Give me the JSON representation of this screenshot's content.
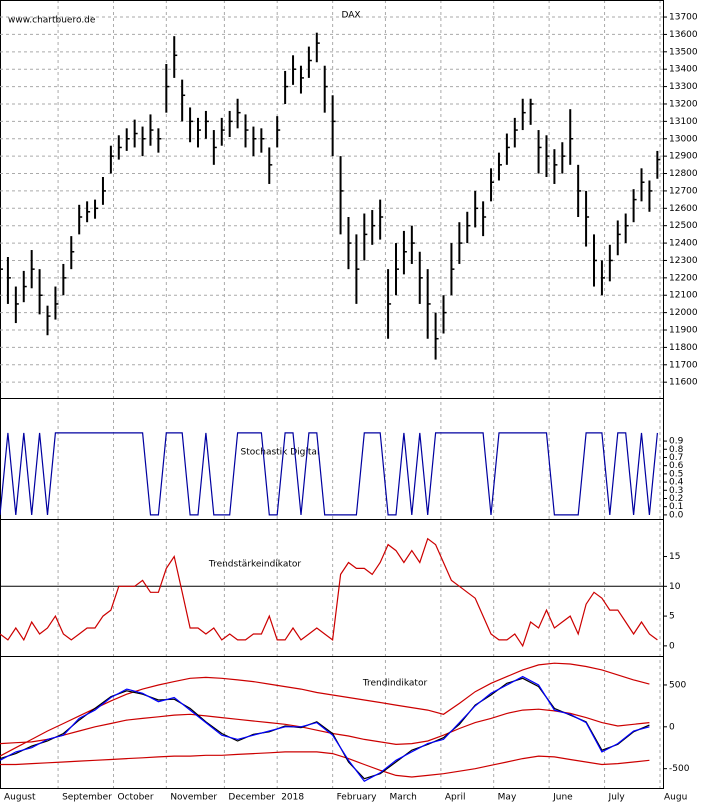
{
  "chart_data": [
    {
      "type": "hlc",
      "title": "DAX",
      "source": "www.chartbuero.de",
      "color": "#000000",
      "grid": true,
      "xlim": [
        0,
        250
      ],
      "x": [
        0,
        3,
        6,
        9,
        12,
        15,
        18,
        21,
        24,
        27,
        30,
        33,
        36,
        39,
        42,
        45,
        48,
        51,
        54,
        57,
        60,
        63,
        66,
        69,
        72,
        75,
        78,
        81,
        84,
        87,
        90,
        93,
        96,
        99,
        102,
        105,
        108,
        111,
        114,
        117,
        120,
        123,
        126,
        129,
        132,
        135,
        138,
        141,
        144,
        147,
        150,
        153,
        156,
        159,
        162,
        165,
        168,
        171,
        174,
        177,
        180,
        183,
        186,
        189,
        192,
        195,
        198,
        201,
        204,
        207,
        210,
        213,
        216,
        219,
        222,
        225,
        228,
        231,
        234,
        237,
        240,
        243,
        246,
        249
      ],
      "high": [
        12330,
        12320,
        12150,
        12240,
        12360,
        12250,
        12040,
        12150,
        12280,
        12440,
        12620,
        12640,
        12650,
        12780,
        12960,
        13020,
        13060,
        13110,
        13070,
        13140,
        13060,
        13430,
        13590,
        13340,
        13180,
        13120,
        13160,
        13050,
        13120,
        13160,
        13230,
        13140,
        13070,
        13060,
        12950,
        13130,
        13390,
        13480,
        13420,
        13530,
        13610,
        13420,
        13250,
        12900,
        12550,
        12450,
        12570,
        12590,
        12650,
        12250,
        12400,
        12470,
        12500,
        12350,
        12250,
        12000,
        12100,
        12400,
        12520,
        12580,
        12700,
        12640,
        12830,
        12920,
        13030,
        13120,
        13230,
        13230,
        13050,
        13020,
        12940,
        12980,
        13170,
        12850,
        12700,
        12450,
        12300,
        12390,
        12530,
        12570,
        12710,
        12830,
        12760,
        12930
      ],
      "low": [
        12150,
        12050,
        11940,
        12060,
        12140,
        11990,
        11870,
        11960,
        12100,
        12250,
        12450,
        12520,
        12540,
        12620,
        12800,
        12880,
        12930,
        12950,
        12900,
        12960,
        12920,
        13150,
        13350,
        13100,
        12980,
        12950,
        13000,
        12850,
        12960,
        13010,
        13060,
        12950,
        12900,
        12920,
        12740,
        12950,
        13200,
        13310,
        13260,
        13350,
        13440,
        13150,
        12900,
        12450,
        12250,
        12050,
        12300,
        12390,
        12420,
        11850,
        12100,
        12220,
        12280,
        12050,
        11850,
        11730,
        11880,
        12100,
        12280,
        12400,
        12490,
        12440,
        12640,
        12760,
        12850,
        12950,
        13050,
        13080,
        12800,
        12780,
        12740,
        12800,
        12850,
        12550,
        12380,
        12150,
        12100,
        12180,
        12330,
        12400,
        12520,
        12640,
        12580,
        12770
      ],
      "close": [
        12250,
        12200,
        12050,
        12150,
        12250,
        12100,
        11980,
        12050,
        12200,
        12350,
        12550,
        12580,
        12600,
        12700,
        12900,
        12950,
        13000,
        13030,
        13000,
        13050,
        13000,
        13300,
        13480,
        13250,
        13100,
        13050,
        13100,
        12950,
        13050,
        13100,
        13150,
        13050,
        13000,
        13000,
        12850,
        13050,
        13300,
        13400,
        13350,
        13450,
        13550,
        13300,
        13100,
        12700,
        12400,
        12250,
        12450,
        12500,
        12550,
        12050,
        12250,
        12350,
        12400,
        12200,
        12050,
        11850,
        12000,
        12250,
        12400,
        12500,
        12600,
        12550,
        12750,
        12850,
        12950,
        13050,
        13150,
        13200,
        12950,
        12900,
        12850,
        12900,
        13000,
        12700,
        12550,
        12300,
        12200,
        12300,
        12450,
        12500,
        12650,
        12750,
        12700,
        12880
      ],
      "ylim": [
        11509,
        13798
      ],
      "yticks": [
        11600,
        11700,
        11800,
        11900,
        12000,
        12100,
        12200,
        12300,
        12400,
        12500,
        12600,
        12700,
        12800,
        12900,
        13000,
        13100,
        13200,
        13300,
        13400,
        13500,
        13600,
        13700
      ]
    },
    {
      "type": "line",
      "title": "Stochastik Digital",
      "title_color": "#0000cc",
      "xlim": [
        0,
        250
      ],
      "x": [
        0,
        3,
        6,
        9,
        12,
        15,
        18,
        21,
        24,
        27,
        30,
        33,
        36,
        39,
        42,
        45,
        48,
        51,
        54,
        57,
        60,
        63,
        66,
        69,
        72,
        75,
        78,
        81,
        84,
        87,
        90,
        93,
        96,
        99,
        102,
        105,
        108,
        111,
        114,
        117,
        120,
        123,
        126,
        129,
        132,
        135,
        138,
        141,
        144,
        147,
        150,
        153,
        156,
        159,
        162,
        165,
        168,
        171,
        174,
        177,
        180,
        183,
        186,
        189,
        192,
        195,
        198,
        201,
        204,
        207,
        210,
        213,
        216,
        219,
        222,
        225,
        228,
        231,
        234,
        237,
        240,
        243,
        246,
        249
      ],
      "series": [
        {
          "color": "#0000a0",
          "values": [
            0,
            1,
            0,
            1,
            0,
            1,
            0,
            1,
            1,
            1,
            1,
            1,
            1,
            1,
            1,
            1,
            1,
            1,
            1,
            0,
            0,
            1,
            1,
            1,
            0,
            0,
            1,
            0,
            0,
            0,
            1,
            1,
            1,
            1,
            0,
            0,
            1,
            1,
            0,
            1,
            1,
            0,
            0,
            0,
            0,
            0,
            1,
            1,
            1,
            0,
            0,
            1,
            0,
            1,
            0,
            1,
            1,
            1,
            1,
            1,
            1,
            1,
            0,
            1,
            1,
            1,
            1,
            1,
            1,
            1,
            0,
            0,
            0,
            0,
            1,
            1,
            1,
            0,
            1,
            1,
            0,
            1,
            0,
            1
          ]
        }
      ],
      "ylim": [
        -0.05,
        1.425
      ],
      "yticks": [
        {
          "value": 0,
          "label": "0.0"
        },
        0.1,
        0.2,
        0.3,
        0.4,
        0.5,
        0.6,
        0.7,
        0.8,
        0.9
      ]
    },
    {
      "type": "line",
      "title": "Trendstärkeindikator",
      "title_color": "#cc0000",
      "xlim": [
        0,
        250
      ],
      "reference_line": 10,
      "x": [
        0,
        3,
        6,
        9,
        12,
        15,
        18,
        21,
        24,
        27,
        30,
        33,
        36,
        39,
        42,
        45,
        48,
        51,
        54,
        57,
        60,
        63,
        66,
        69,
        72,
        75,
        78,
        81,
        84,
        87,
        90,
        93,
        96,
        99,
        102,
        105,
        108,
        111,
        114,
        117,
        120,
        123,
        126,
        129,
        132,
        135,
        138,
        141,
        144,
        147,
        150,
        153,
        156,
        159,
        162,
        165,
        168,
        171,
        174,
        177,
        180,
        183,
        186,
        189,
        192,
        195,
        198,
        201,
        204,
        207,
        210,
        213,
        216,
        219,
        222,
        225,
        228,
        231,
        234,
        237,
        240,
        243,
        246,
        249
      ],
      "series": [
        {
          "color": "#cc0000",
          "values": [
            2,
            1,
            3,
            1,
            4,
            2,
            3,
            5,
            2,
            1,
            2,
            3,
            3,
            5,
            6,
            10,
            10,
            10,
            11,
            9,
            9,
            13,
            15,
            9,
            3,
            3,
            2,
            3,
            1,
            2,
            1,
            1,
            2,
            2,
            5,
            1,
            1,
            3,
            1,
            2,
            3,
            2,
            1,
            12,
            14,
            13,
            13,
            12,
            14,
            17,
            16,
            14,
            16,
            14,
            18,
            17,
            14,
            11,
            10,
            9,
            8,
            5,
            2,
            1,
            1,
            2,
            0,
            4,
            3,
            6,
            3,
            4,
            5,
            2,
            7,
            9,
            8,
            6,
            6,
            4,
            2,
            4,
            2,
            1
          ]
        }
      ],
      "ylim": [
        -1.7,
        21.3
      ],
      "yticks": [
        0,
        5,
        10,
        15
      ]
    },
    {
      "type": "line",
      "title": "Trendindikator",
      "title_color": "#0000cc",
      "xlim": [
        0,
        250
      ],
      "x": [
        0,
        6,
        12,
        18,
        24,
        30,
        36,
        42,
        48,
        54,
        60,
        66,
        72,
        78,
        84,
        90,
        96,
        102,
        108,
        114,
        120,
        126,
        132,
        138,
        144,
        150,
        156,
        162,
        168,
        174,
        180,
        186,
        192,
        198,
        204,
        210,
        216,
        222,
        228,
        234,
        240,
        246
      ],
      "series": [
        {
          "color": "#cc0000",
          "values": [
            -350,
            -250,
            -150,
            -50,
            40,
            130,
            220,
            310,
            390,
            450,
            500,
            540,
            580,
            590,
            580,
            560,
            540,
            510,
            480,
            450,
            410,
            380,
            350,
            320,
            290,
            260,
            230,
            200,
            150,
            280,
            420,
            520,
            600,
            680,
            740,
            760,
            750,
            720,
            680,
            620,
            560,
            510
          ]
        },
        {
          "color": "#cc0000",
          "values": [
            -200,
            -190,
            -180,
            -150,
            -100,
            -50,
            0,
            40,
            80,
            100,
            120,
            140,
            150,
            130,
            110,
            90,
            70,
            50,
            30,
            0,
            -40,
            -80,
            -110,
            -150,
            -180,
            -210,
            -200,
            -170,
            -100,
            -20,
            50,
            100,
            160,
            200,
            210,
            190,
            160,
            110,
            50,
            10,
            30,
            50
          ]
        },
        {
          "color": "#cc0000",
          "values": [
            -450,
            -450,
            -440,
            -430,
            -420,
            -410,
            -400,
            -390,
            -380,
            -370,
            -360,
            -350,
            -350,
            -340,
            -340,
            -330,
            -320,
            -310,
            -300,
            -300,
            -300,
            -320,
            -380,
            -450,
            -520,
            -580,
            -600,
            -580,
            -560,
            -530,
            -500,
            -460,
            -420,
            -380,
            -350,
            -360,
            -390,
            -420,
            -450,
            -440,
            -420,
            -400
          ]
        },
        {
          "color": "#000000",
          "values": [
            -380,
            -320,
            -230,
            -170,
            -80,
            80,
            220,
            360,
            430,
            390,
            320,
            330,
            220,
            60,
            -80,
            -170,
            -90,
            -60,
            10,
            -10,
            60,
            -80,
            -420,
            -620,
            -560,
            -420,
            -280,
            -210,
            -130,
            30,
            260,
            380,
            520,
            580,
            480,
            220,
            140,
            60,
            -280,
            -210,
            -60,
            20
          ]
        },
        {
          "color": "#0000ff",
          "values": [
            -400,
            -300,
            -250,
            -150,
            -100,
            100,
            200,
            350,
            450,
            400,
            300,
            350,
            200,
            50,
            -100,
            -150,
            -100,
            -50,
            0,
            0,
            50,
            -100,
            -400,
            -650,
            -550,
            -400,
            -300,
            -200,
            -150,
            50,
            250,
            400,
            500,
            600,
            500,
            200,
            150,
            50,
            -300,
            -200,
            -50,
            0
          ]
        }
      ],
      "ylim": [
        -731,
        846
      ],
      "yticks": [
        500,
        0,
        -500
      ],
      "xticks": [
        {
          "value": 0,
          "label": "August"
        },
        {
          "value": 22,
          "label": "September"
        },
        {
          "value": 43,
          "label": "October"
        },
        {
          "value": 63,
          "label": "November"
        },
        {
          "value": 85,
          "label": "December"
        },
        {
          "value": 105,
          "label": "2018"
        },
        {
          "value": 126,
          "label": "February"
        },
        {
          "value": 146,
          "label": "March"
        },
        {
          "value": 167,
          "label": "April"
        },
        {
          "value": 187,
          "label": "May"
        },
        {
          "value": 208,
          "label": "June"
        },
        {
          "value": 229,
          "label": "July"
        },
        {
          "value": 250,
          "label": "Augu"
        }
      ]
    }
  ]
}
